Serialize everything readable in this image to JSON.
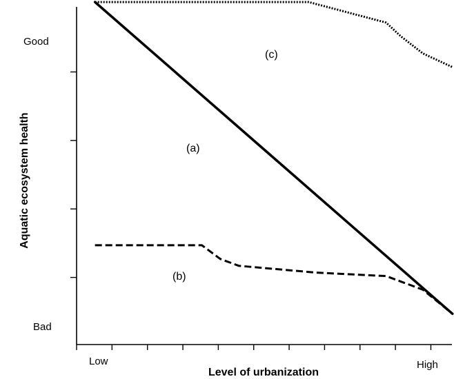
{
  "chart_data": {
    "type": "line",
    "title": "",
    "xlabel": "Level of urbanization",
    "ylabel": "Aquatic ecosystem health",
    "xlim": [
      0,
      10
    ],
    "ylim": [
      0,
      10
    ],
    "x_tick_labels": {
      "low": "Low",
      "high": "High"
    },
    "y_tick_labels": {
      "high": "Good",
      "low": "Bad"
    },
    "grid": false,
    "series": [
      {
        "name": "(a)",
        "style": "solid",
        "color": "#000000",
        "points": [
          [
            0.5,
            10
          ],
          [
            10.2,
            0.9
          ]
        ]
      },
      {
        "name": "(b)",
        "style": "dashed",
        "color": "#000000",
        "points": [
          [
            0.5,
            2.9
          ],
          [
            3.4,
            2.9
          ],
          [
            3.9,
            2.5
          ],
          [
            4.4,
            2.3
          ],
          [
            6.5,
            2.1
          ],
          [
            8.4,
            2.0
          ],
          [
            9.4,
            1.6
          ],
          [
            10.2,
            0.9
          ]
        ]
      },
      {
        "name": "(c)",
        "style": "dotted",
        "color": "#000000",
        "points": [
          [
            0.5,
            10
          ],
          [
            6.3,
            10
          ],
          [
            7.0,
            9.8
          ],
          [
            8.4,
            9.4
          ],
          [
            8.8,
            9.0
          ],
          [
            9.4,
            8.5
          ],
          [
            10.2,
            8.1
          ]
        ]
      }
    ]
  }
}
